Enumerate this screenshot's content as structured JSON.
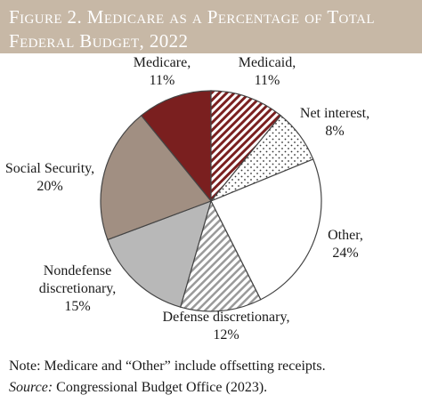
{
  "figure": {
    "title_line1": "Figure 2. Medicare as a Percentage of Total",
    "title_line2": "Federal Budget, 2022",
    "note": "Note: Medicare and “Other” include offsetting receipts.",
    "source_prefix": "Source:",
    "source_text": " Congressional Budget Office (2023)."
  },
  "colors": {
    "header_band": "#c7b8a6",
    "medicare": "#7a1f1f",
    "medicaid_stripe": "#7a1f1f",
    "net_interest_dots": "#333333",
    "other": "#ffffff",
    "defense_stripe": "#9a9a9a",
    "nondefense": "#b8b8b8",
    "social_security": "#a18f82",
    "outline": "#444444"
  },
  "chart_data": {
    "type": "pie",
    "unit": "%",
    "slices": [
      {
        "name": "Medicare",
        "value": 11,
        "label_lines": [
          "Medicare,",
          "11%"
        ],
        "fill": "solid",
        "color": "#7a1f1f"
      },
      {
        "name": "Medicaid",
        "value": 11,
        "label_lines": [
          "Medicaid,",
          "11%"
        ],
        "fill": "stripes",
        "color": "#7a1f1f"
      },
      {
        "name": "Net interest",
        "value": 8,
        "label_lines": [
          "Net interest,",
          "8%"
        ],
        "fill": "dots",
        "color": "#333333"
      },
      {
        "name": "Other",
        "value": 24,
        "label_lines": [
          "Other,",
          "24%"
        ],
        "fill": "solid",
        "color": "#ffffff"
      },
      {
        "name": "Defense discretionary",
        "value": 12,
        "label_lines": [
          "Defense discretionary,",
          "12%"
        ],
        "fill": "stripes",
        "color": "#9a9a9a"
      },
      {
        "name": "Nondefense discretionary",
        "value": 15,
        "label_lines": [
          "Nondefense",
          "discretionary,",
          "15%"
        ],
        "fill": "solid",
        "color": "#b8b8b8"
      },
      {
        "name": "Social Security",
        "value": 20,
        "label_lines": [
          "Social Security,",
          "20%"
        ],
        "fill": "solid",
        "color": "#a18f82"
      }
    ]
  }
}
